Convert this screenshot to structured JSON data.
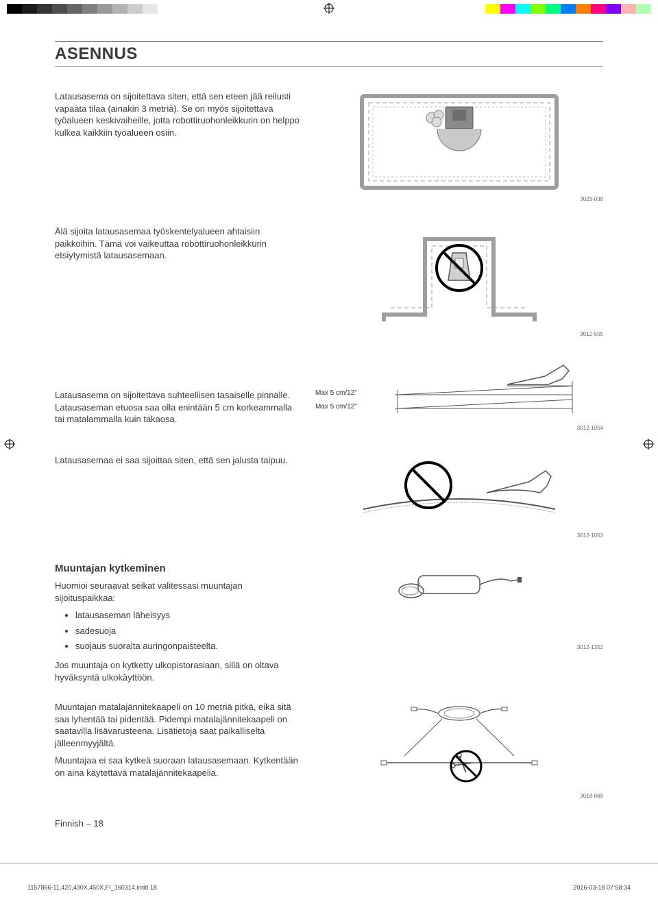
{
  "print_bar": {
    "grayscale": [
      "#000000",
      "#1a1a1a",
      "#333333",
      "#4d4d4d",
      "#666666",
      "#808080",
      "#999999",
      "#b3b3b3",
      "#cccccc",
      "#e6e6e6",
      "#ffffff"
    ],
    "colors": [
      "#ffff00",
      "#ff00ff",
      "#00ffff",
      "#7fff00",
      "#00ff7f",
      "#007fff",
      "#ff7f00",
      "#ff007f",
      "#7f00ff",
      "#ffb3b3",
      "#b3ffb3"
    ]
  },
  "page_title": "ASENNUS",
  "sections": [
    {
      "text": "Latausasema on sijoitettava siten, että sen eteen jää reilusti vapaata tilaa (ainakin 3 metriä). Se on myös sijoitettava työalueen keskivaiheille, jotta robottiruohonleikkurin on helppo kulkea kaikkiin työalueen osiin.",
      "fig_code": "3023-038"
    },
    {
      "text": "Älä sijoita latausasemaa työskentelyalueen ahtaisiin paikkoihin. Tämä voi vaikeuttaa robottiruohonleikkurin etsiytymistä latausasemaan.",
      "fig_code": "3012-555"
    },
    {
      "text": "Latausasema on sijoitettava suhteellisen tasaiselle pinnalle. Latausaseman etuosa saa olla enintään 5 cm korkeammalla tai matalammalla kuin takaosa.",
      "slope_label_top": "Max 5 cm/12\"",
      "slope_label_bottom": "Max 5 cm/12\"",
      "fig_code": "3012-1054"
    },
    {
      "text": "Latausasemaa ei saa sijoittaa siten, että sen jalusta taipuu.",
      "fig_code": "3012-1053"
    },
    {
      "heading": "Muuntajan kytkeminen",
      "intro": "Huomioi seuraavat seikat valitessasi muuntajan sijoituspaikkaa:",
      "bullets": [
        "latausaseman läheisyys",
        "sadesuoja",
        "suojaus suoralta auringonpaisteelta."
      ],
      "after_bullets": "Jos muuntaja on kytketty ulkopistorasiaan, sillä on oltava hyväksyntä ulkokäyttöön.",
      "fig_code": "3012-1352"
    },
    {
      "p1": "Muuntajan matalajännitekaapeli on 10 metriä pitkä, eikä sitä saa lyhentää tai pidentää. Pidempi matalajännitekaapeli on saatavilla lisävarusteena. Lisätietoja saat paikalliselta jälleenmyyjältä.",
      "p2": "Muuntajaa ei saa kytkeä suoraan latausasemaan. Kytkentään on aina käytettävä matalajännitekaapelia.",
      "fig_code": "3018-069"
    }
  ],
  "footer": {
    "lang_page": "Finnish – 18"
  },
  "indd": {
    "file": "1157866-11,420,430X,450X,FI_160314.indd   18",
    "datetime": "2016-03-18   07:58:34"
  }
}
